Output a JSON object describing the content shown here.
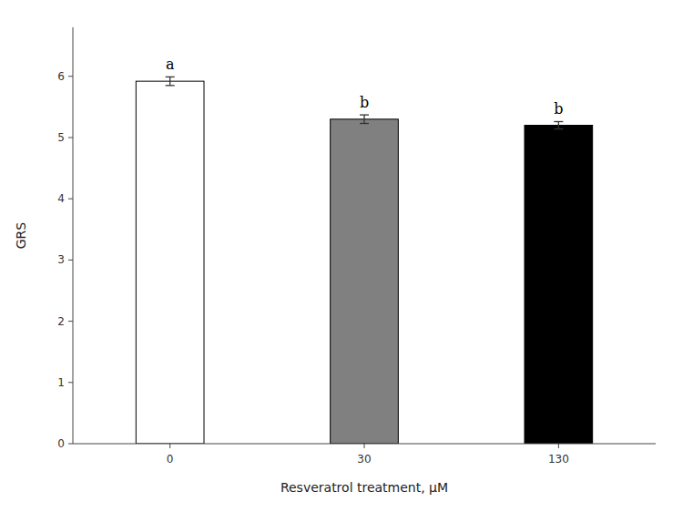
{
  "chart_data": {
    "type": "bar",
    "categories": [
      "0",
      "30",
      "130"
    ],
    "values": [
      5.92,
      5.3,
      5.2
    ],
    "errors": [
      0.07,
      0.07,
      0.06
    ],
    "colors": [
      "#ffffff",
      "#808080",
      "#000000"
    ],
    "annotations": [
      "a",
      "b",
      "b"
    ],
    "xlabel": "Resveratrol treatment, μM",
    "ylabel": "GRS",
    "ylim": [
      0,
      6.8
    ],
    "yticks": [
      0,
      1,
      2,
      3,
      4,
      5,
      6
    ],
    "grid": false
  }
}
